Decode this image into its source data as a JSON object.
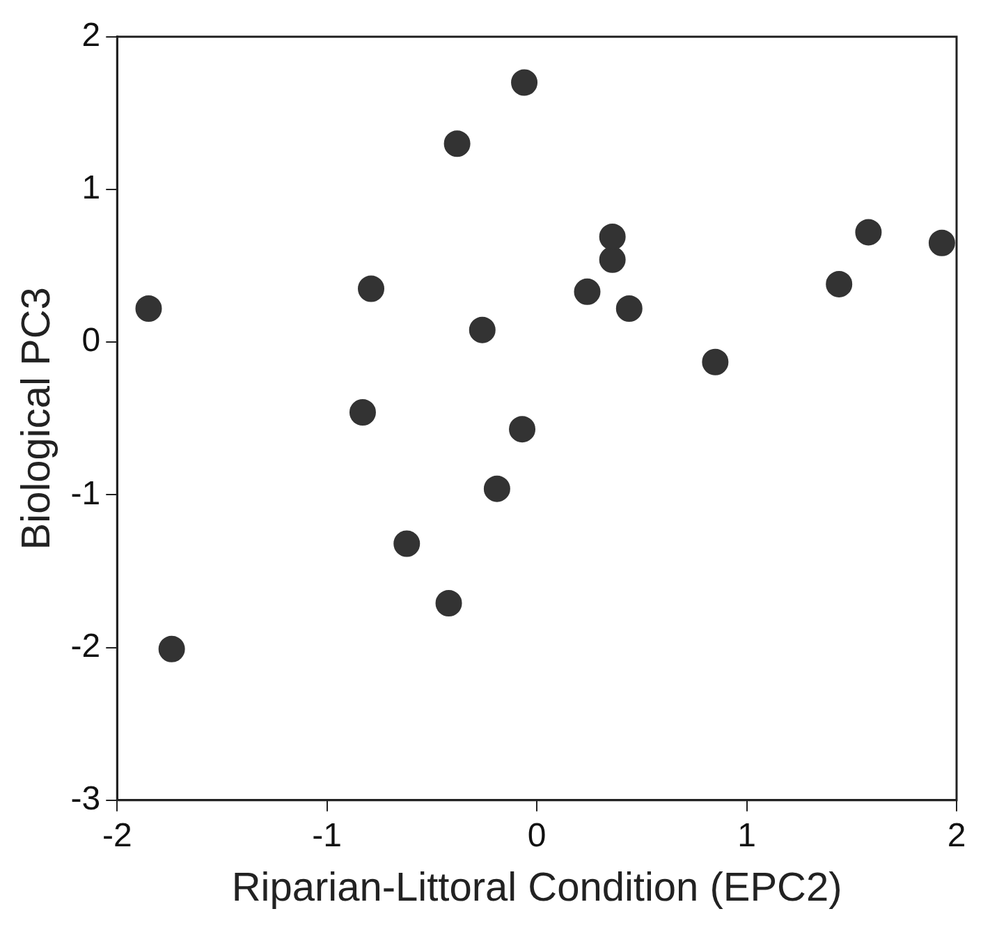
{
  "chart_data": {
    "type": "scatter",
    "xlabel": "Riparian-Littoral Condition (EPC2)",
    "ylabel": "Biological PC3",
    "x": [
      -1.85,
      -1.74,
      -0.79,
      -0.83,
      -0.62,
      -0.42,
      -0.38,
      -0.26,
      -0.19,
      -0.07,
      -0.06,
      0.24,
      0.36,
      0.36,
      0.44,
      0.85,
      1.44,
      1.58,
      1.93
    ],
    "series": [
      {
        "color": "#333333",
        "values": [
          0.22,
          -2.01,
          0.35,
          -0.46,
          -1.32,
          -1.71,
          1.3,
          0.08,
          -0.96,
          -0.57,
          1.7,
          0.33,
          0.54,
          0.69,
          0.22,
          -0.13,
          0.38,
          0.72,
          0.65
        ]
      }
    ],
    "xlim": [
      -2,
      2
    ],
    "xticks": [
      -2,
      -1,
      0,
      1,
      2
    ],
    "ylim": [
      -3,
      2
    ],
    "yticks": [
      -3,
      -2,
      -1,
      0,
      1,
      2
    ],
    "grid": false,
    "legend": false,
    "marker": "circle"
  }
}
